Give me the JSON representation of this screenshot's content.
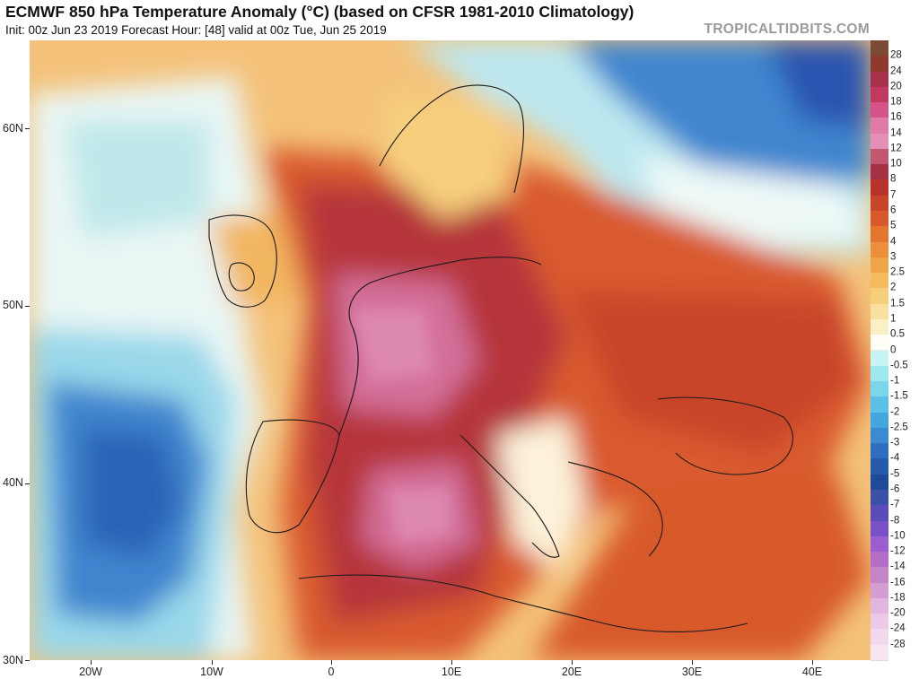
{
  "header": {
    "title": "ECMWF 850 hPa Temperature Anomaly (°C) (based on CFSR 1981-2010 Climatology)",
    "subtitle": "Init: 00z Jun 23 2019   Forecast Hour: [48]   valid at 00z Tue, Jun 25 2019",
    "brand": "TROPICALTIDBITS.COM"
  },
  "axes": {
    "lat_labels": [
      "60N",
      "50N",
      "40N",
      "30N"
    ],
    "lon_labels": [
      "20W",
      "10W",
      "0",
      "10E",
      "20E",
      "30E",
      "40E"
    ],
    "lat_values": [
      60,
      50,
      40,
      30
    ],
    "lon_values": [
      -20,
      -10,
      0,
      10,
      20,
      30,
      40
    ],
    "lon_range": [
      -25,
      44.5
    ],
    "lat_range": [
      30,
      65
    ]
  },
  "colorbar": {
    "ticks": [
      "28",
      "24",
      "20",
      "18",
      "16",
      "14",
      "12",
      "10",
      "8",
      "7",
      "6",
      "5",
      "4",
      "3",
      "2.5",
      "2",
      "1.5",
      "1",
      "0.5",
      "0",
      "-0.5",
      "-1",
      "-1.5",
      "-2",
      "-2.5",
      "-3",
      "-4",
      "-5",
      "-6",
      "-7",
      "-8",
      "-10",
      "-12",
      "-14",
      "-16",
      "-18",
      "-20",
      "-24",
      "-28"
    ],
    "colors": [
      "#7a4a35",
      "#8f3a2c",
      "#a9304a",
      "#c0395f",
      "#d4548a",
      "#e07aa6",
      "#e38fb8",
      "#c2586f",
      "#a63044",
      "#b8342a",
      "#c8442a",
      "#d85a2c",
      "#e4752f",
      "#eb8f3a",
      "#f0a448",
      "#f4ba5e",
      "#f6cf7d",
      "#f8e19e",
      "#fbefc6",
      "#fffdf4",
      "#c9f4f4",
      "#9de8ee",
      "#7ad6ea",
      "#5bc0e6",
      "#44a6de",
      "#3a8bd2",
      "#2f6fc2",
      "#255aad",
      "#1e4a99",
      "#3b50a8",
      "#5a4cb8",
      "#7a50c8",
      "#9b5dd0",
      "#b46ec8",
      "#c685c8",
      "#d59ed2",
      "#e2b6de",
      "#ecc9e6",
      "#f2d8ec",
      "#f7e6f2"
    ]
  }
}
